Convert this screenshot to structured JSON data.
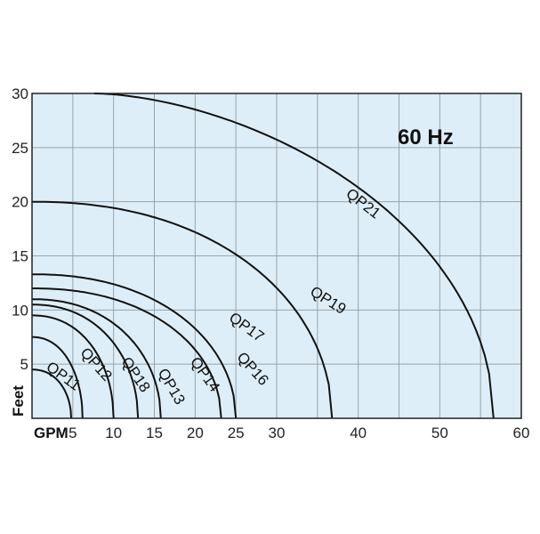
{
  "chart_data": {
    "type": "line",
    "annotation": "60 Hz",
    "xlabel": "GPM",
    "ylabel": "Feet",
    "xlim": [
      0,
      60
    ],
    "ylim": [
      0,
      30
    ],
    "x_ticks": [
      "5",
      "10",
      "15",
      "20",
      "25",
      "30",
      "40",
      "50",
      "60"
    ],
    "y_ticks": [
      "5",
      "10",
      "15",
      "20",
      "25",
      "30"
    ],
    "grid": true,
    "colors": {
      "plot_bg": "#ddeef8",
      "grid": "#9aa3a9",
      "curve": "#111111"
    },
    "series": [
      {
        "name": "QP11",
        "shutoff_head": 4.5,
        "max_flow": 4.8
      },
      {
        "name": "QP12",
        "shutoff_head": 7.5,
        "max_flow": 6.2
      },
      {
        "name": "QP18",
        "shutoff_head": 9.5,
        "max_flow": 10.0
      },
      {
        "name": "QP13",
        "shutoff_head": 10.5,
        "max_flow": 13.0
      },
      {
        "name": "QP14",
        "shutoff_head": 11.0,
        "max_flow": 15.8
      },
      {
        "name": "QP16",
        "shutoff_head": 12.0,
        "max_flow": 23.2
      },
      {
        "name": "QP17",
        "shutoff_head": 13.3,
        "max_flow": 25.0
      },
      {
        "name": "QP19",
        "shutoff_head": 20.0,
        "max_flow": 36.8
      },
      {
        "name": "QP21",
        "start": [
          7.6,
          30.0
        ],
        "max_flow": 56.6
      }
    ]
  }
}
